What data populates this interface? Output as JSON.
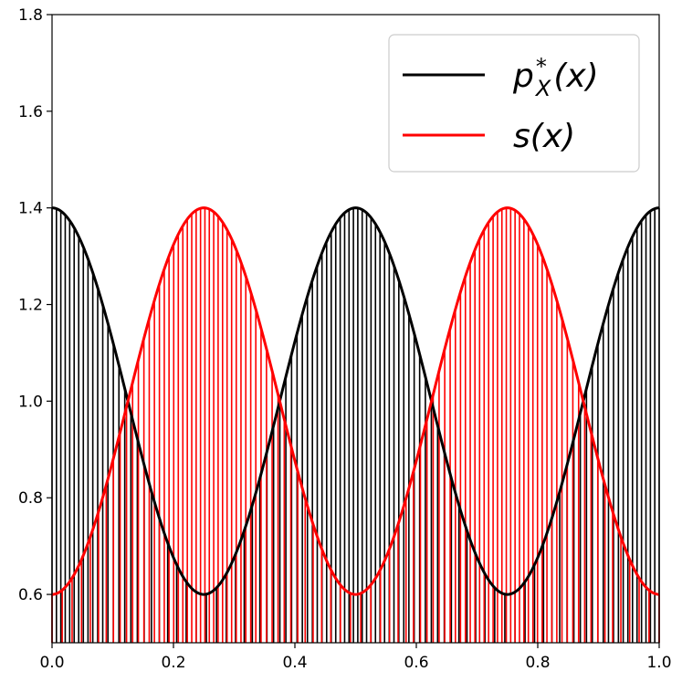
{
  "chart_data": {
    "type": "line",
    "title": "",
    "xlabel": "",
    "ylabel": "",
    "xlim": [
      0.0,
      1.0
    ],
    "ylim": [
      0.5,
      1.8
    ],
    "grid": false,
    "legend_position": "top-right",
    "x_ticks": [
      "0.0",
      "0.2",
      "0.4",
      "0.6",
      "0.8",
      "1.0"
    ],
    "y_ticks": [
      "0.6",
      "0.8",
      "1.0",
      "1.2",
      "1.4",
      "1.6",
      "1.8"
    ],
    "x_tick_values": [
      0.0,
      0.2,
      0.4,
      0.6,
      0.8,
      1.0
    ],
    "y_tick_values": [
      0.6,
      0.8,
      1.0,
      1.2,
      1.4,
      1.6,
      1.8
    ],
    "series": [
      {
        "name": "p*_X(x)",
        "legend_label": "p*X(x)",
        "color": "#000000",
        "formula": "1 + 0.4*cos(4*pi*x)",
        "x": [
          0.0,
          0.05,
          0.1,
          0.15,
          0.2,
          0.25,
          0.3,
          0.35,
          0.4,
          0.45,
          0.5,
          0.55,
          0.6,
          0.65,
          0.7,
          0.75,
          0.8,
          0.85,
          0.9,
          0.95,
          1.0
        ],
        "values": [
          1.4,
          1.324,
          1.124,
          0.876,
          0.676,
          0.6,
          0.676,
          0.876,
          1.124,
          1.324,
          1.4,
          1.324,
          1.124,
          0.876,
          0.676,
          0.6,
          0.676,
          0.876,
          1.124,
          1.324,
          1.4
        ]
      },
      {
        "name": "s(x)",
        "legend_label": "s(x)",
        "color": "#ff0000",
        "formula": "1 - 0.4*cos(4*pi*x)",
        "x": [
          0.0,
          0.05,
          0.1,
          0.15,
          0.2,
          0.25,
          0.3,
          0.35,
          0.4,
          0.45,
          0.5,
          0.55,
          0.6,
          0.65,
          0.7,
          0.75,
          0.8,
          0.85,
          0.9,
          0.95,
          1.0
        ],
        "values": [
          0.6,
          0.676,
          0.876,
          1.124,
          1.324,
          1.4,
          1.324,
          1.124,
          0.876,
          0.676,
          0.6,
          0.676,
          0.876,
          1.124,
          1.324,
          1.4,
          1.324,
          1.124,
          0.876,
          0.676,
          0.6
        ]
      }
    ],
    "sample_lines": {
      "count": 100,
      "description": "vertical lines from bottom axis up to the curve, at quantile points of each density",
      "black_source": "p*_X(x)",
      "red_source": "s(x)"
    }
  }
}
